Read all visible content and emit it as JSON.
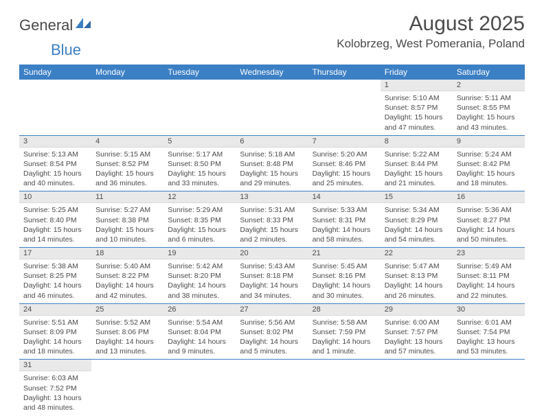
{
  "brand": {
    "part1": "General",
    "part2": "Blue"
  },
  "title": "August 2025",
  "subtitle": "Kolobrzeg, West Pomerania, Poland",
  "colors": {
    "header_bg": "#3b7fc4",
    "header_text": "#ffffff",
    "daynum_bg": "#e9e9e9",
    "text": "#4a4a4a",
    "row_divider": "#3b7fc4",
    "page_bg": "#ffffff"
  },
  "typography": {
    "title_fontsize_pt": 22,
    "subtitle_fontsize_pt": 13,
    "header_fontsize_pt": 9,
    "body_fontsize_pt": 8
  },
  "calendar": {
    "type": "table",
    "columns": [
      "Sunday",
      "Monday",
      "Tuesday",
      "Wednesday",
      "Thursday",
      "Friday",
      "Saturday"
    ],
    "weeks": [
      [
        null,
        null,
        null,
        null,
        null,
        {
          "n": "1",
          "sr": "5:10 AM",
          "ss": "8:57 PM",
          "dl": "15 hours and 47 minutes."
        },
        {
          "n": "2",
          "sr": "5:11 AM",
          "ss": "8:55 PM",
          "dl": "15 hours and 43 minutes."
        }
      ],
      [
        {
          "n": "3",
          "sr": "5:13 AM",
          "ss": "8:54 PM",
          "dl": "15 hours and 40 minutes."
        },
        {
          "n": "4",
          "sr": "5:15 AM",
          "ss": "8:52 PM",
          "dl": "15 hours and 36 minutes."
        },
        {
          "n": "5",
          "sr": "5:17 AM",
          "ss": "8:50 PM",
          "dl": "15 hours and 33 minutes."
        },
        {
          "n": "6",
          "sr": "5:18 AM",
          "ss": "8:48 PM",
          "dl": "15 hours and 29 minutes."
        },
        {
          "n": "7",
          "sr": "5:20 AM",
          "ss": "8:46 PM",
          "dl": "15 hours and 25 minutes."
        },
        {
          "n": "8",
          "sr": "5:22 AM",
          "ss": "8:44 PM",
          "dl": "15 hours and 21 minutes."
        },
        {
          "n": "9",
          "sr": "5:24 AM",
          "ss": "8:42 PM",
          "dl": "15 hours and 18 minutes."
        }
      ],
      [
        {
          "n": "10",
          "sr": "5:25 AM",
          "ss": "8:40 PM",
          "dl": "15 hours and 14 minutes."
        },
        {
          "n": "11",
          "sr": "5:27 AM",
          "ss": "8:38 PM",
          "dl": "15 hours and 10 minutes."
        },
        {
          "n": "12",
          "sr": "5:29 AM",
          "ss": "8:35 PM",
          "dl": "15 hours and 6 minutes."
        },
        {
          "n": "13",
          "sr": "5:31 AM",
          "ss": "8:33 PM",
          "dl": "15 hours and 2 minutes."
        },
        {
          "n": "14",
          "sr": "5:33 AM",
          "ss": "8:31 PM",
          "dl": "14 hours and 58 minutes."
        },
        {
          "n": "15",
          "sr": "5:34 AM",
          "ss": "8:29 PM",
          "dl": "14 hours and 54 minutes."
        },
        {
          "n": "16",
          "sr": "5:36 AM",
          "ss": "8:27 PM",
          "dl": "14 hours and 50 minutes."
        }
      ],
      [
        {
          "n": "17",
          "sr": "5:38 AM",
          "ss": "8:25 PM",
          "dl": "14 hours and 46 minutes."
        },
        {
          "n": "18",
          "sr": "5:40 AM",
          "ss": "8:22 PM",
          "dl": "14 hours and 42 minutes."
        },
        {
          "n": "19",
          "sr": "5:42 AM",
          "ss": "8:20 PM",
          "dl": "14 hours and 38 minutes."
        },
        {
          "n": "20",
          "sr": "5:43 AM",
          "ss": "8:18 PM",
          "dl": "14 hours and 34 minutes."
        },
        {
          "n": "21",
          "sr": "5:45 AM",
          "ss": "8:16 PM",
          "dl": "14 hours and 30 minutes."
        },
        {
          "n": "22",
          "sr": "5:47 AM",
          "ss": "8:13 PM",
          "dl": "14 hours and 26 minutes."
        },
        {
          "n": "23",
          "sr": "5:49 AM",
          "ss": "8:11 PM",
          "dl": "14 hours and 22 minutes."
        }
      ],
      [
        {
          "n": "24",
          "sr": "5:51 AM",
          "ss": "8:09 PM",
          "dl": "14 hours and 18 minutes."
        },
        {
          "n": "25",
          "sr": "5:52 AM",
          "ss": "8:06 PM",
          "dl": "14 hours and 13 minutes."
        },
        {
          "n": "26",
          "sr": "5:54 AM",
          "ss": "8:04 PM",
          "dl": "14 hours and 9 minutes."
        },
        {
          "n": "27",
          "sr": "5:56 AM",
          "ss": "8:02 PM",
          "dl": "14 hours and 5 minutes."
        },
        {
          "n": "28",
          "sr": "5:58 AM",
          "ss": "7:59 PM",
          "dl": "14 hours and 1 minute."
        },
        {
          "n": "29",
          "sr": "6:00 AM",
          "ss": "7:57 PM",
          "dl": "13 hours and 57 minutes."
        },
        {
          "n": "30",
          "sr": "6:01 AM",
          "ss": "7:54 PM",
          "dl": "13 hours and 53 minutes."
        }
      ],
      [
        {
          "n": "31",
          "sr": "6:03 AM",
          "ss": "7:52 PM",
          "dl": "13 hours and 48 minutes."
        },
        null,
        null,
        null,
        null,
        null,
        null
      ]
    ],
    "labels": {
      "sunrise": "Sunrise:",
      "sunset": "Sunset:",
      "daylight": "Daylight:"
    }
  }
}
